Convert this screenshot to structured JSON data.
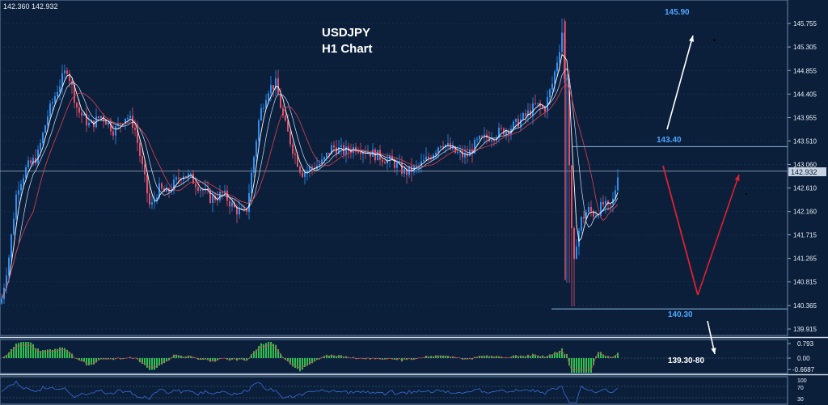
{
  "header": {
    "price_readout": "142.360 142.932"
  },
  "title": {
    "line1": "USDJPY",
    "line2": "H1 Chart"
  },
  "colors": {
    "background": "#0b1f3a",
    "grid": "#1c3a5e",
    "candle_up": "#2f8ff0",
    "candle_down": "#e0506a",
    "ma_white": "#ffffff",
    "ma_red": "#e04050",
    "level_line": "#8fb8e0",
    "level_label": "#4da6ff",
    "arrow_white": "#ffffff",
    "arrow_red": "#e02030",
    "osc_hist": "#2fbf4f",
    "rsi_line": "#3a6ed8",
    "axis_text": "#e8eef6",
    "current_box": "#c8d4e2"
  },
  "chart_data": {
    "type": "candlestick",
    "price_ticks": [
      "145.755",
      "145.305",
      "144.855",
      "144.405",
      "143.955",
      "143.510",
      "143.060",
      "142.610",
      "142.160",
      "141.715",
      "141.265",
      "140.815",
      "140.365",
      "139.915"
    ],
    "current_price": "142.932",
    "levels": [
      {
        "label": "145.90",
        "price": 145.9
      },
      {
        "label": "143.40",
        "price": 143.4
      },
      {
        "label": "140.30",
        "price": 140.3
      }
    ],
    "projection_label": "139.30-80",
    "oscillator": {
      "ticks": [
        "0.793",
        "0.00",
        "-0.6687"
      ]
    },
    "rsi": {
      "ticks": [
        "100",
        "70",
        "30"
      ]
    },
    "close_path": [
      [
        0,
        140.4
      ],
      [
        10,
        141.3
      ],
      [
        20,
        142.6
      ],
      [
        32,
        143.0
      ],
      [
        45,
        143.2
      ],
      [
        58,
        144.0
      ],
      [
        70,
        144.5
      ],
      [
        82,
        144.9
      ],
      [
        95,
        144.1
      ],
      [
        110,
        143.8
      ],
      [
        125,
        144.0
      ],
      [
        140,
        143.7
      ],
      [
        155,
        144.0
      ],
      [
        165,
        143.8
      ],
      [
        175,
        143.0
      ],
      [
        185,
        142.2
      ],
      [
        195,
        142.6
      ],
      [
        205,
        142.5
      ],
      [
        215,
        142.7
      ],
      [
        225,
        142.9
      ],
      [
        235,
        142.8
      ],
      [
        248,
        142.6
      ],
      [
        260,
        142.4
      ],
      [
        275,
        142.5
      ],
      [
        290,
        142.2
      ],
      [
        303,
        142.1
      ],
      [
        312,
        143.1
      ],
      [
        320,
        144.0
      ],
      [
        330,
        144.5
      ],
      [
        340,
        144.6
      ],
      [
        350,
        143.9
      ],
      [
        360,
        143.4
      ],
      [
        372,
        142.9
      ],
      [
        385,
        143.0
      ],
      [
        398,
        143.1
      ],
      [
        410,
        143.4
      ],
      [
        425,
        143.3
      ],
      [
        440,
        143.4
      ],
      [
        455,
        143.3
      ],
      [
        470,
        143.2
      ],
      [
        485,
        143.1
      ],
      [
        500,
        142.9
      ],
      [
        515,
        143.0
      ],
      [
        530,
        143.2
      ],
      [
        545,
        143.5
      ],
      [
        560,
        143.3
      ],
      [
        575,
        143.2
      ],
      [
        590,
        143.5
      ],
      [
        605,
        143.6
      ],
      [
        620,
        143.7
      ],
      [
        635,
        143.8
      ],
      [
        650,
        144.0
      ],
      [
        662,
        144.2
      ],
      [
        672,
        144.1
      ],
      [
        682,
        144.6
      ],
      [
        690,
        145.2
      ],
      [
        696,
        145.8
      ],
      [
        700,
        144.7
      ],
      [
        704,
        142.5
      ],
      [
        708,
        141.0
      ],
      [
        712,
        141.6
      ],
      [
        718,
        142.0
      ],
      [
        726,
        142.2
      ],
      [
        735,
        142.1
      ],
      [
        745,
        142.3
      ],
      [
        752,
        142.2
      ],
      [
        758,
        142.4
      ],
      [
        763,
        142.9
      ]
    ]
  }
}
